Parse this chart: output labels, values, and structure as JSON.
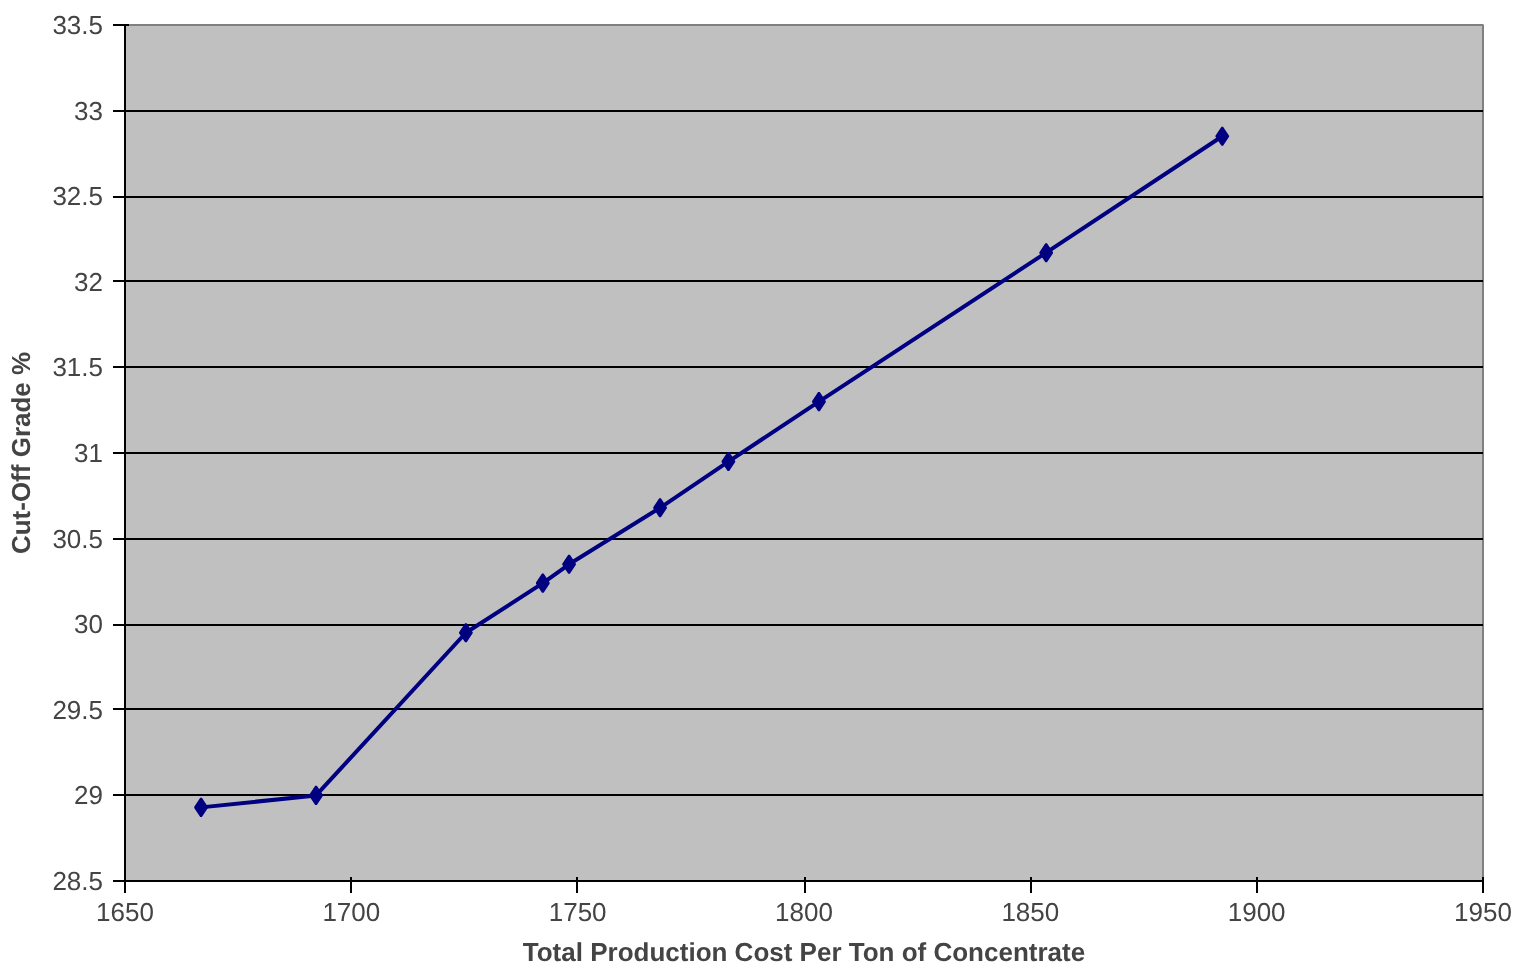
{
  "chart_data": {
    "type": "line",
    "xlabel": "Total Production Cost Per Ton of Concentrate",
    "ylabel": "Cut-Off Grade %",
    "x": [
      1666.8,
      1692.2,
      1725.3,
      1742.3,
      1748.1,
      1768.2,
      1783.3,
      1803.3,
      1853.5,
      1892.4
    ],
    "series": [
      {
        "color": "#000080",
        "values": [
          28.93,
          29.0,
          29.95,
          30.24,
          30.35,
          30.68,
          30.95,
          31.3,
          32.17,
          32.85
        ]
      }
    ],
    "xlim": [
      1650,
      1950
    ],
    "xticks": [
      1650,
      1700,
      1750,
      1800,
      1850,
      1900,
      1950
    ],
    "ylim": [
      28.5,
      33.5
    ],
    "yticks": [
      28.5,
      29,
      29.5,
      30,
      30.5,
      31,
      31.5,
      32,
      32.5,
      33,
      33.5
    ],
    "grid": "y",
    "marker": "diamond",
    "line_style": "solid"
  }
}
